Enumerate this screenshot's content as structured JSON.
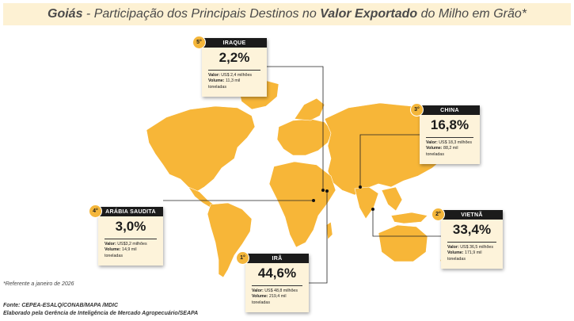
{
  "title": {
    "region": "Goiás",
    "sep": " - ",
    "part1": "Participação dos Principais Destinos no ",
    "bold": "Valor Exportado",
    "part2": " do Milho em Grão*"
  },
  "destinations": [
    {
      "rank": "1°",
      "country": "IRÃ",
      "share": "44,6%",
      "value_label": "Valor:",
      "value": "US$ 48,8  milhões",
      "volume_label": "Volume:",
      "volume": "219,4 mil",
      "unit": "toneladas"
    },
    {
      "rank": "2°",
      "country": "VIETNÃ",
      "share": "33,4%",
      "value_label": "Valor:",
      "value": "US$ 36,5 milhões",
      "volume_label": "Volume:",
      "volume": "171,9 mil",
      "unit": "toneladas"
    },
    {
      "rank": "3°",
      "country": "CHINA",
      "share": "16,8%",
      "value_label": "Valor:",
      "value": "US$ 18,3 milhões",
      "volume_label": "Volume:",
      "volume": "88,2 mil",
      "unit": "toneladas"
    },
    {
      "rank": "4°",
      "country": "ARÁBIA SAUDITA",
      "share": "3,0%",
      "value_label": "Valor:",
      "value": "US$3,2 milhões",
      "volume_label": "Volume:",
      "volume": "14,9 mil",
      "unit": "toneladas"
    },
    {
      "rank": "5°",
      "country": "IRAQUE",
      "share": "2,2%",
      "value_label": "Valor:",
      "value": "US$ 2,4 milhões",
      "volume_label": "Volume:",
      "volume": "11,3 mil",
      "unit": "toneladas"
    }
  ],
  "footnote": "*Referente a janeiro de 2026",
  "source": "Fonte: CEPEA-ESALQ/CONAB/MAPA /MDIC",
  "credit": "Elaborado pela Gerência de Inteligência de Mercado Agropecuário/SEAPA",
  "colors": {
    "land": "#f7b638",
    "header": "#1b1b1b",
    "card": "#fdf3da",
    "title_bg": "#fdf1d3"
  }
}
